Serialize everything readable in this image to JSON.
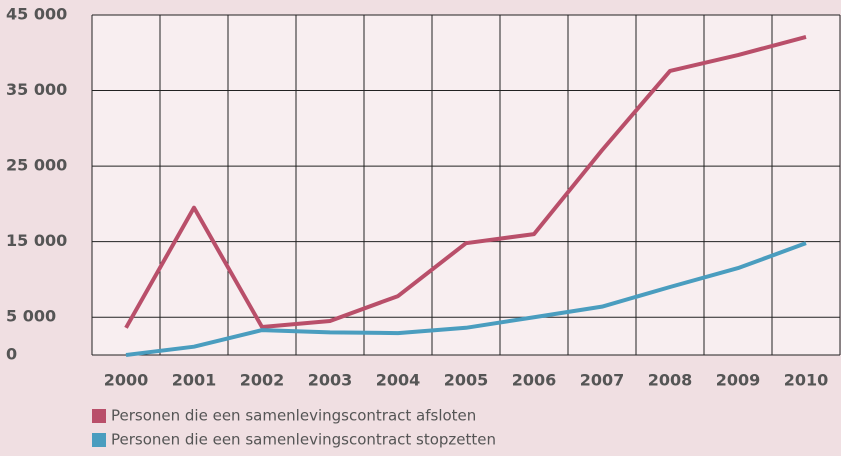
{
  "chart_data": {
    "type": "line",
    "categories": [
      "2000",
      "2001",
      "2002",
      "2003",
      "2004",
      "2005",
      "2006",
      "2007",
      "2008",
      "2009",
      "2010"
    ],
    "series": [
      {
        "name": "Personen die een samenlevingscontract afsloten",
        "color": "#b94f6a",
        "values": [
          3600,
          19500,
          3700,
          4500,
          7800,
          14800,
          16000,
          27100,
          37600,
          39700,
          42100
        ]
      },
      {
        "name": "Personen die een samenlevingscontract stopzetten",
        "color": "#4a9dbf",
        "values": [
          0,
          1100,
          3300,
          3000,
          2900,
          3600,
          5000,
          6400,
          9000,
          11500,
          14800
        ]
      }
    ],
    "ylim": [
      0,
      45000
    ],
    "yticks": [
      0,
      {
        "value": 5000,
        "label": "5 000"
      },
      {
        "value": 15000,
        "label": "15 000"
      },
      {
        "value": 25000,
        "label": "25 000"
      },
      {
        "value": 35000,
        "label": "35 000"
      },
      {
        "value": 45000,
        "label": "45 000"
      }
    ],
    "grid": true
  }
}
